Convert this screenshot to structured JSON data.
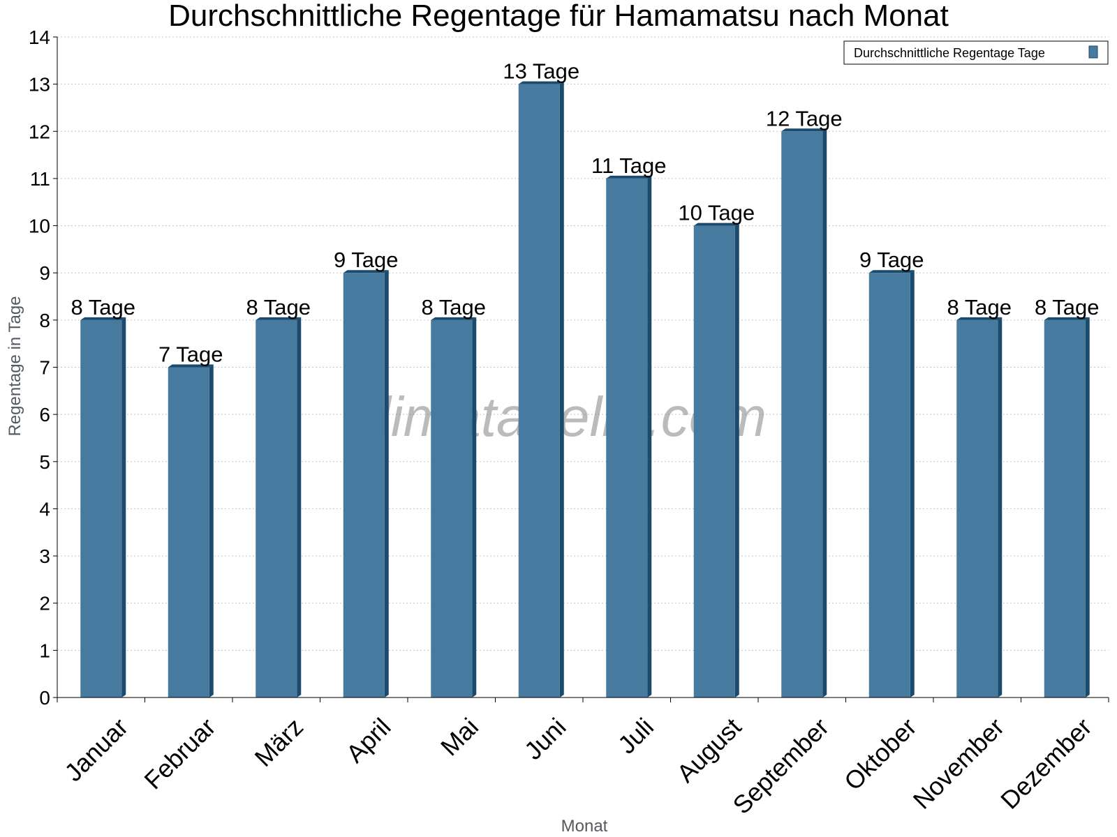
{
  "chart_data": {
    "type": "bar",
    "title": "Durchschnittliche Regentage für Hamamatsu nach Monat",
    "xlabel": "Monat",
    "ylabel": "Regentage in Tage",
    "ylim": [
      0,
      14
    ],
    "yticks": [
      "0",
      "1",
      "2",
      "3",
      "4",
      "5",
      "6",
      "7",
      "8",
      "9",
      "10",
      "11",
      "12",
      "13",
      "14"
    ],
    "categories": [
      "Januar",
      "Februar",
      "März",
      "April",
      "Mai",
      "Juni",
      "Juli",
      "August",
      "September",
      "Oktober",
      "November",
      "Dezember"
    ],
    "series": [
      {
        "name": "Durchschnittliche Regentage Tage",
        "values": [
          8,
          7,
          8,
          9,
          8,
          13,
          11,
          10,
          12,
          9,
          8,
          8
        ],
        "labels": [
          "8 Tage",
          "7 Tage",
          "8 Tage",
          "9 Tage",
          "8 Tage",
          "13 Tage",
          "11 Tage",
          "10 Tage",
          "12 Tage",
          "9 Tage",
          "8 Tage",
          "8 Tage"
        ],
        "color": "#467a9e",
        "edge_color": "#1c4a6c"
      }
    ],
    "grid": true,
    "legend_position": "top-right",
    "watermark": "klimatabelle.com"
  }
}
